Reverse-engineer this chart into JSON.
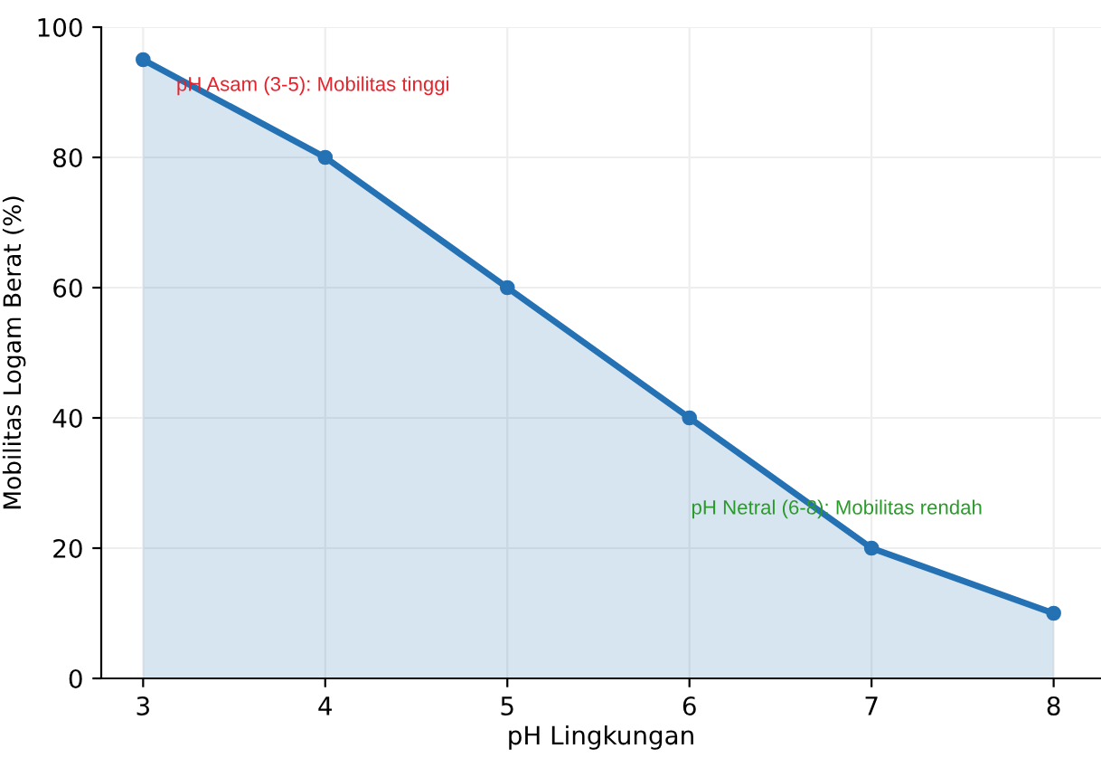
{
  "chart_data": {
    "type": "area",
    "xlabel": "pH Lingkungan",
    "ylabel": "Mobilitas Logam Berat (%)",
    "x": [
      3,
      4,
      5,
      6,
      7,
      8
    ],
    "series": [
      {
        "color": "#2471b3",
        "values": [
          95,
          80,
          60,
          40,
          20,
          10
        ]
      }
    ],
    "xlim": [
      2.77,
      8.26
    ],
    "ylim": [
      0,
      100
    ],
    "xticks": [
      3,
      4,
      5,
      6,
      7,
      8
    ],
    "yticks": [
      0,
      20,
      40,
      60,
      80,
      100
    ],
    "grid": true,
    "marker": "circle",
    "line_style": "solid",
    "annotations": [
      "pH Asam (3-5): Mobilitas tinggi",
      "pH Netral (6-8): Mobilitas rendah"
    ]
  }
}
